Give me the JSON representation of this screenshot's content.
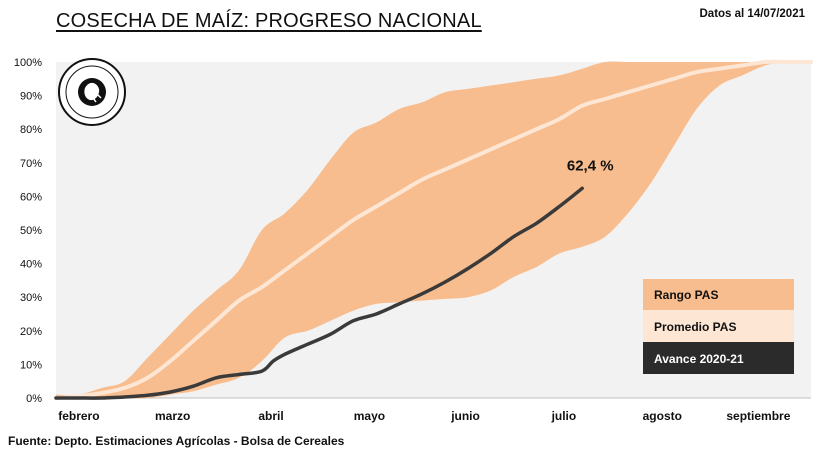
{
  "chart_data": {
    "type": "area",
    "title": "COSECHA DE MAÍZ: PROGRESO NACIONAL",
    "date_note": "Datos al 14/07/2021",
    "source": "Fuente: Depto. Estimaciones Agrícolas - Bolsa de Cereales",
    "y_unit": "%",
    "ylim": [
      0,
      100
    ],
    "y_ticks": [
      0,
      10,
      20,
      30,
      40,
      50,
      60,
      70,
      80,
      90,
      100
    ],
    "x_unit": "week",
    "xlim": [
      0,
      33
    ],
    "x_labels": [
      {
        "x": 1,
        "label": "febrero"
      },
      {
        "x": 5.1,
        "label": "marzo"
      },
      {
        "x": 9.4,
        "label": "abril"
      },
      {
        "x": 13.7,
        "label": "mayo"
      },
      {
        "x": 17.9,
        "label": "junio"
      },
      {
        "x": 22.2,
        "label": "julio"
      },
      {
        "x": 26.5,
        "label": "agosto"
      },
      {
        "x": 30.7,
        "label": "septiembre"
      }
    ],
    "grid": false,
    "legend_position": "bottom-right",
    "series": [
      {
        "name": "Rango PAS",
        "kind": "band",
        "color": "#f8bd8e",
        "x": [
          0,
          1,
          2,
          3,
          4,
          5,
          6,
          7,
          8,
          9,
          10,
          11,
          12,
          13,
          14,
          15,
          16,
          17,
          18,
          19,
          20,
          21,
          22,
          23,
          24,
          25,
          26,
          27,
          28,
          29,
          30,
          31,
          32,
          33
        ],
        "upper": [
          1,
          1,
          3,
          5,
          12,
          19,
          26,
          32,
          38,
          50,
          55,
          62,
          71,
          79,
          82,
          86,
          88,
          91,
          92,
          93,
          94,
          95,
          96,
          98,
          100,
          100,
          100,
          100,
          100,
          100,
          100,
          100,
          100,
          100
        ],
        "lower": [
          0,
          0,
          0,
          0,
          0,
          1,
          2,
          4,
          6,
          11,
          18,
          20,
          23,
          26,
          28,
          28.5,
          29,
          29.5,
          30,
          32,
          36,
          39,
          43,
          45,
          48,
          55,
          64,
          75,
          86,
          93,
          96,
          99,
          100,
          100
        ]
      },
      {
        "name": "Promedio PAS",
        "kind": "line",
        "color": "#fde6d4",
        "x": [
          0,
          1,
          2,
          3,
          4,
          5,
          6,
          7,
          8,
          9,
          10,
          11,
          12,
          13,
          14,
          15,
          16,
          17,
          18,
          19,
          20,
          21,
          22,
          23,
          24,
          25,
          26,
          27,
          28,
          29,
          30,
          31,
          32,
          33
        ],
        "values": [
          0,
          0.5,
          1.5,
          3,
          6,
          11,
          17,
          23,
          29,
          33,
          38,
          43,
          48,
          53,
          57,
          61,
          65,
          68,
          71,
          74,
          77,
          80,
          83,
          87,
          89,
          91,
          93,
          95,
          97,
          98,
          99,
          100,
          100,
          100
        ]
      },
      {
        "name": "Avance 2020-21",
        "kind": "line",
        "color": "#3a3a3a",
        "x": [
          0,
          1,
          2,
          3,
          4,
          5,
          6,
          7,
          8,
          9,
          9.5,
          10,
          11,
          12,
          13,
          14,
          15,
          16,
          17,
          18,
          19,
          20,
          21,
          22,
          23
        ],
        "values": [
          0,
          0,
          0,
          0.3,
          0.8,
          1.8,
          3.5,
          6,
          7,
          8,
          11,
          13,
          16,
          19,
          23,
          25,
          28,
          31,
          34.5,
          38.5,
          43,
          48,
          52,
          57,
          62.4
        ]
      }
    ],
    "annotations": [
      {
        "text": "62,4 %",
        "x": 23,
        "y": 62.4
      }
    ]
  }
}
